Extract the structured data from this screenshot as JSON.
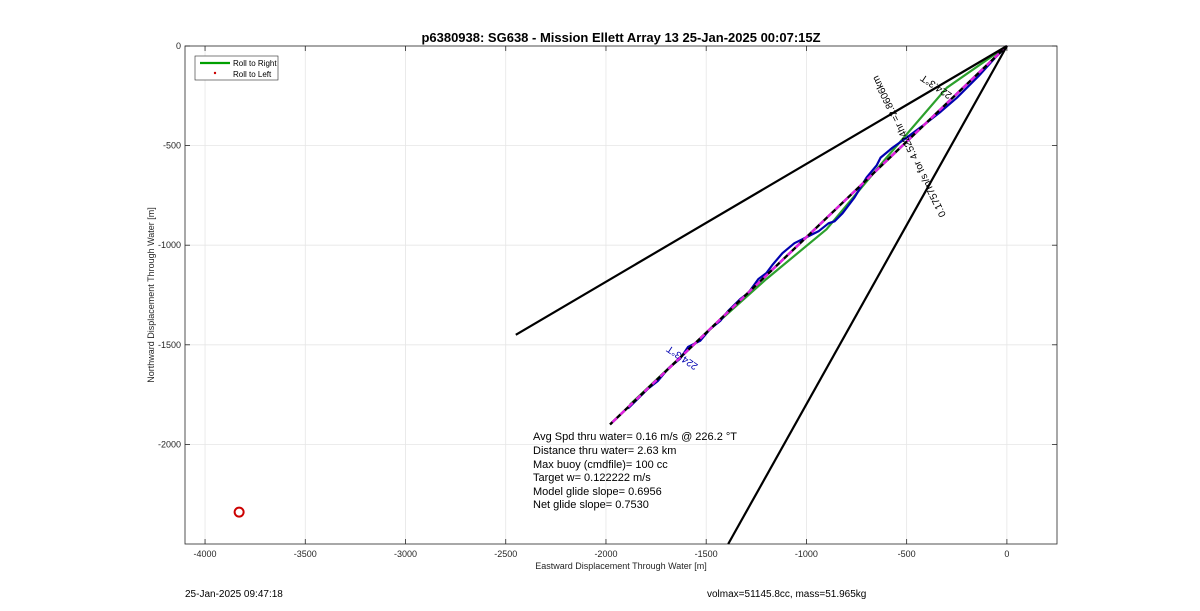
{
  "footer": {
    "timestamp": "25-Jan-2025 09:47:18",
    "vol_mass": "volmax=51145.8cc, mass=51.965kg"
  },
  "chart_data": {
    "type": "line",
    "title": "p6380938: SG638 - Mission Ellett Array 13 25-Jan-2025 00:07:15Z",
    "xlabel": "Eastward Displacement Through Water [m]",
    "ylabel": "Northward Displacement Through Water [m]",
    "xlim": [
      -4100,
      250
    ],
    "ylim": [
      -2500,
      0
    ],
    "xticks": [
      -4000,
      -3500,
      -3000,
      -2500,
      -2000,
      -1500,
      -1000,
      -500,
      0
    ],
    "yticks": [
      0,
      -500,
      -1000,
      -1500,
      -2000
    ],
    "grid": true,
    "legend": {
      "placement": "top-left",
      "entries": [
        {
          "label": "Roll to Right",
          "color": "#00a000",
          "style": "line"
        },
        {
          "label": "Roll to Left",
          "color": "#cc0000",
          "style": "dot"
        }
      ]
    },
    "series": [
      {
        "name": "Roll to Right",
        "color": "#2ca02c",
        "x": [
          0,
          -300,
          -600,
          -900,
          -1200,
          -1500,
          -1880
        ],
        "y": [
          0,
          -210,
          -560,
          -920,
          -1170,
          -1440,
          -1800
        ]
      },
      {
        "color": "#0000b0",
        "x": [
          0,
          -60,
          -140,
          -250,
          -330,
          -420,
          -500,
          -570,
          -630,
          -650,
          -700,
          -760,
          -820,
          -860,
          -890,
          -940,
          -1000,
          -1060,
          -1120,
          -1170,
          -1200,
          -1240,
          -1290,
          -1330,
          -1390,
          -1430,
          -1480,
          -1530,
          -1590,
          -1630,
          -1690,
          -1740,
          -1790,
          -1840,
          -1890
        ],
        "y": [
          0,
          -60,
          -150,
          -260,
          -330,
          -400,
          -460,
          -510,
          -560,
          -600,
          -660,
          -760,
          -840,
          -880,
          -890,
          -930,
          -960,
          -990,
          -1040,
          -1100,
          -1140,
          -1170,
          -1240,
          -1270,
          -1330,
          -1380,
          -1420,
          -1480,
          -1510,
          -1570,
          -1620,
          -1680,
          -1720,
          -1770,
          -1820
        ]
      },
      {
        "color": "#e020e0",
        "dashed": true,
        "x": [
          0,
          -1980
        ],
        "y": [
          0,
          -1900
        ]
      },
      {
        "color": "#000000",
        "x": [
          0,
          -2450
        ],
        "y": [
          0,
          -1450
        ]
      },
      {
        "color": "#000000",
        "x": [
          0,
          -1390
        ],
        "y": [
          0,
          -2500
        ]
      }
    ],
    "markers": [
      {
        "x": -3830,
        "y": -2340,
        "color": "#cc0000",
        "shape": "circle"
      }
    ],
    "line_labels": [
      {
        "text": "224.3°T",
        "color": "#000000"
      },
      {
        "text": "0.1757m/s for 4.5224hr =2.8606km",
        "color": "#000000"
      },
      {
        "text": "224.3°T",
        "color": "#0000b0"
      }
    ],
    "annotations": [
      "Avg Spd thru water=  0.16 m/s @ 226.2 °T",
      "Distance thru water=  2.63 km",
      "Max buoy (cmdfile)= 100 cc",
      "Target w= 0.122222 m/s",
      "Model glide slope= 0.6956",
      "Net glide slope= 0.7530"
    ]
  }
}
